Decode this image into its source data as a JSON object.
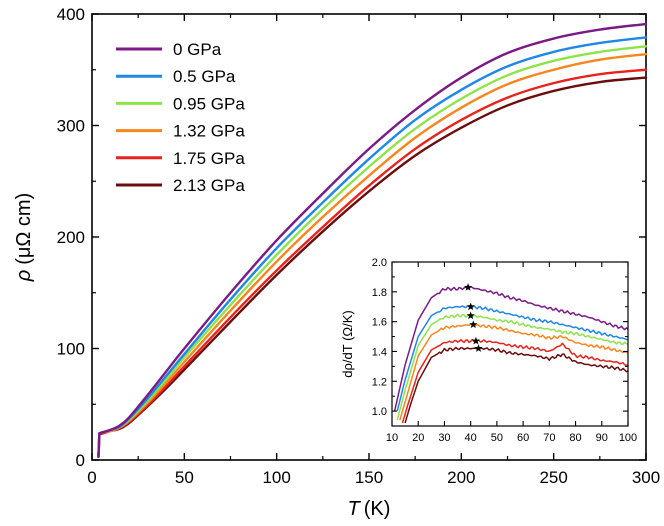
{
  "chart_data": [
    {
      "type": "line",
      "panel": "main",
      "xlabel": {
        "symbol": "T",
        "unit": "(K)"
      },
      "ylabel": {
        "symbol": "ρ",
        "unit": "(μΩ cm)"
      },
      "xlim": [
        0,
        300
      ],
      "ylim": [
        0,
        400
      ],
      "xticks": [
        0,
        50,
        100,
        150,
        200,
        250,
        300
      ],
      "yticks": [
        0,
        100,
        200,
        300,
        400
      ],
      "grid": false,
      "legend_position": "top-left",
      "series": [
        {
          "name": "0 GPa",
          "color": "#7b1a86",
          "x": [
            3.5,
            4,
            6,
            10,
            15,
            20,
            30,
            40,
            50,
            75,
            100,
            125,
            150,
            175,
            200,
            225,
            250,
            275,
            300
          ],
          "y": [
            3,
            24,
            25,
            27,
            31,
            38,
            58,
            79,
            100,
            150,
            197,
            239,
            279,
            314,
            343,
            365,
            378,
            386,
            391
          ]
        },
        {
          "name": "0.5 GPa",
          "color": "#1e88e5",
          "x": [
            3.5,
            4,
            6,
            10,
            15,
            20,
            30,
            40,
            50,
            75,
            100,
            125,
            150,
            175,
            200,
            225,
            250,
            275,
            300
          ],
          "y": [
            3,
            24,
            25,
            27,
            30,
            37,
            55,
            75,
            95,
            144,
            190,
            231,
            270,
            305,
            332,
            353,
            366,
            374,
            379
          ]
        },
        {
          "name": "0.95 GPa",
          "color": "#8fe34a",
          "x": [
            3.5,
            4,
            6,
            10,
            15,
            20,
            30,
            40,
            50,
            75,
            100,
            125,
            150,
            175,
            200,
            225,
            250,
            275,
            300
          ],
          "y": [
            3,
            24,
            25,
            27,
            30,
            36,
            53,
            72,
            92,
            139,
            184,
            225,
            263,
            297,
            324,
            345,
            358,
            366,
            371
          ]
        },
        {
          "name": "1.32 GPa",
          "color": "#f7861f",
          "x": [
            3.5,
            4,
            6,
            10,
            15,
            20,
            30,
            40,
            50,
            75,
            100,
            125,
            150,
            175,
            200,
            225,
            250,
            275,
            300
          ],
          "y": [
            3,
            24,
            25,
            26,
            29,
            35,
            51,
            69,
            88,
            134,
            178,
            218,
            255,
            289,
            316,
            337,
            350,
            359,
            364
          ]
        },
        {
          "name": "1.75 GPa",
          "color": "#e8231c",
          "x": [
            3.5,
            4,
            6,
            10,
            15,
            20,
            30,
            40,
            50,
            75,
            100,
            125,
            150,
            175,
            200,
            225,
            250,
            275,
            300
          ],
          "y": [
            3,
            23,
            24,
            26,
            29,
            34,
            49,
            66,
            84,
            128,
            170,
            209,
            246,
            279,
            305,
            325,
            338,
            346,
            350
          ]
        },
        {
          "name": "2.13 GPa",
          "color": "#6a0d0d",
          "x": [
            3.5,
            4,
            6,
            10,
            15,
            20,
            30,
            40,
            50,
            75,
            100,
            125,
            150,
            175,
            200,
            225,
            250,
            275,
            300
          ],
          "y": [
            3,
            23,
            24,
            26,
            28,
            33,
            48,
            64,
            81,
            124,
            166,
            205,
            241,
            273,
            298,
            318,
            331,
            339,
            343
          ]
        }
      ]
    },
    {
      "type": "line",
      "panel": "inset",
      "xlabel": null,
      "ylabel": {
        "text": "dρ/dT (Ω/K)"
      },
      "xlim": [
        10,
        100
      ],
      "ylim": [
        0.9,
        2.0
      ],
      "xticks": [
        10,
        20,
        30,
        40,
        50,
        60,
        70,
        80,
        90,
        100
      ],
      "yticks": [
        1.0,
        1.2,
        1.4,
        1.6,
        1.8,
        2.0
      ],
      "ytick_labels": [
        "1.0",
        "1.2",
        "1.4",
        "1.6",
        "1.8",
        "2.0"
      ],
      "grid": false,
      "series": [
        {
          "name": "0 GPa",
          "color": "#7b1a86",
          "x": [
            11,
            15,
            20,
            25,
            30,
            35,
            40,
            45,
            50,
            55,
            60,
            65,
            70,
            75,
            80,
            85,
            90,
            95,
            100
          ],
          "y": [
            1.0,
            1.31,
            1.61,
            1.76,
            1.82,
            1.82,
            1.83,
            1.81,
            1.79,
            1.76,
            1.74,
            1.71,
            1.69,
            1.67,
            1.65,
            1.63,
            1.6,
            1.57,
            1.55
          ],
          "peak": {
            "x": 39,
            "y": 1.83
          }
        },
        {
          "name": "0.5 GPa",
          "color": "#1e88e5",
          "x": [
            12,
            15,
            20,
            25,
            30,
            35,
            40,
            45,
            50,
            55,
            60,
            65,
            70,
            75,
            80,
            85,
            90,
            95,
            100
          ],
          "y": [
            1.0,
            1.21,
            1.5,
            1.64,
            1.69,
            1.7,
            1.7,
            1.69,
            1.67,
            1.65,
            1.63,
            1.61,
            1.6,
            1.58,
            1.56,
            1.54,
            1.52,
            1.5,
            1.48
          ],
          "peak": {
            "x": 40,
            "y": 1.7
          }
        },
        {
          "name": "0.95 GPa",
          "color": "#8fe34a",
          "x": [
            12,
            15,
            20,
            25,
            30,
            35,
            40,
            45,
            50,
            55,
            60,
            65,
            70,
            75,
            80,
            85,
            90,
            95,
            100
          ],
          "y": [
            0.94,
            1.14,
            1.44,
            1.58,
            1.63,
            1.64,
            1.64,
            1.63,
            1.61,
            1.6,
            1.58,
            1.56,
            1.55,
            1.53,
            1.52,
            1.5,
            1.48,
            1.46,
            1.45
          ],
          "peak": {
            "x": 40,
            "y": 1.64
          }
        },
        {
          "name": "1.32 GPa",
          "color": "#f7861f",
          "x": [
            13,
            15,
            20,
            25,
            30,
            35,
            40,
            45,
            50,
            55,
            60,
            65,
            70,
            75,
            80,
            85,
            90,
            95,
            100
          ],
          "y": [
            0.94,
            1.06,
            1.37,
            1.51,
            1.56,
            1.57,
            1.58,
            1.57,
            1.56,
            1.54,
            1.52,
            1.51,
            1.49,
            1.5,
            1.46,
            1.44,
            1.43,
            1.41,
            1.39
          ],
          "peak": {
            "x": 41,
            "y": 1.58
          }
        },
        {
          "name": "1.75 GPa",
          "color": "#e8231c",
          "x": [
            14,
            16,
            20,
            25,
            30,
            35,
            40,
            45,
            50,
            55,
            60,
            65,
            70,
            75,
            80,
            85,
            90,
            95,
            100
          ],
          "y": [
            0.92,
            1.04,
            1.26,
            1.41,
            1.46,
            1.47,
            1.47,
            1.47,
            1.46,
            1.44,
            1.43,
            1.42,
            1.4,
            1.45,
            1.37,
            1.36,
            1.34,
            1.33,
            1.31
          ],
          "peak": {
            "x": 42,
            "y": 1.47
          }
        },
        {
          "name": "2.13 GPa",
          "color": "#6a0d0d",
          "x": [
            15,
            17,
            20,
            25,
            30,
            35,
            40,
            45,
            50,
            55,
            60,
            65,
            70,
            75,
            80,
            85,
            90,
            95,
            100
          ],
          "y": [
            0.92,
            1.04,
            1.2,
            1.36,
            1.41,
            1.42,
            1.42,
            1.42,
            1.41,
            1.39,
            1.38,
            1.37,
            1.35,
            1.38,
            1.33,
            1.31,
            1.3,
            1.29,
            1.27
          ],
          "peak": {
            "x": 43,
            "y": 1.42
          }
        }
      ]
    }
  ]
}
